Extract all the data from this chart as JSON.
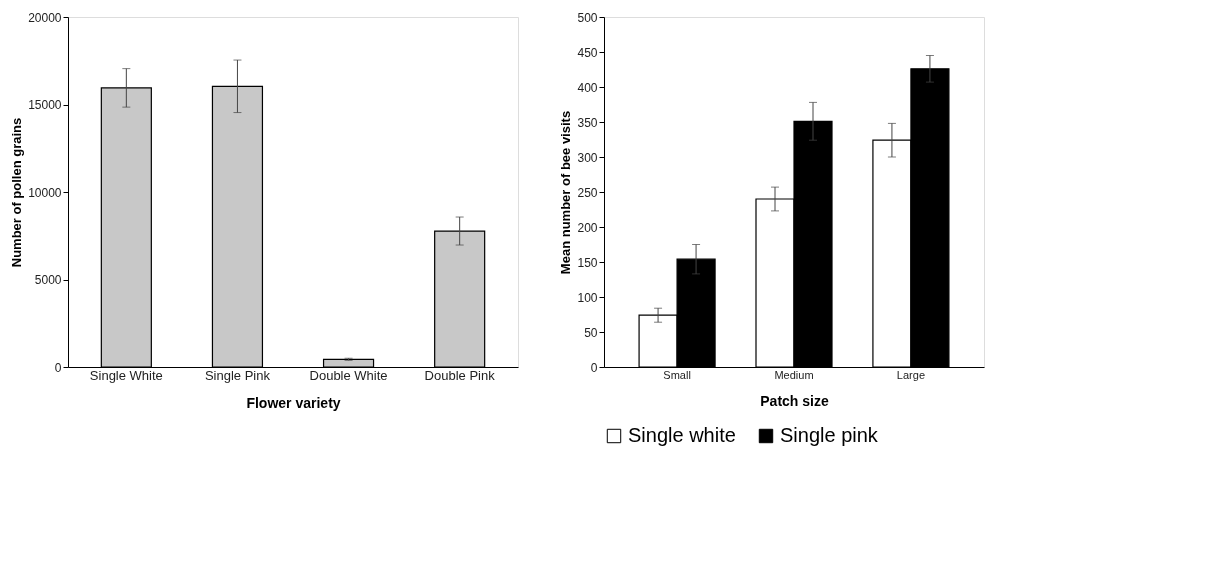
{
  "chart_data": [
    {
      "type": "bar",
      "xlabel": "Flower variety",
      "ylabel": "Number of pollen grains",
      "categories": [
        "Single White",
        "Single Pink",
        "Double White",
        "Double Pink"
      ],
      "values": [
        15950,
        16040,
        440,
        7770
      ],
      "color": "#c8c8c8",
      "errors": [
        1100,
        1500,
        60,
        800
      ],
      "ylim": [
        0,
        20000
      ],
      "yticks": [
        0,
        5000,
        10000,
        15000,
        20000
      ],
      "grid": false
    },
    {
      "type": "bar",
      "xlabel": "Patch size",
      "ylabel": "Mean number of bee visits",
      "categories": [
        "Small",
        "Medium",
        "Large"
      ],
      "series": [
        {
          "name": "Single white",
          "color": "#ffffff",
          "values": [
            74,
            240,
            324
          ],
          "errors": [
            10,
            17,
            24
          ]
        },
        {
          "name": "Single pink",
          "color": "#000000",
          "values": [
            154,
            351,
            426
          ],
          "errors": [
            21,
            27,
            19
          ]
        }
      ],
      "ylim": [
        0,
        500
      ],
      "yticks": [
        0,
        50,
        100,
        150,
        200,
        250,
        300,
        350,
        400,
        450,
        500
      ],
      "grid": false,
      "legend": "bottom"
    }
  ]
}
